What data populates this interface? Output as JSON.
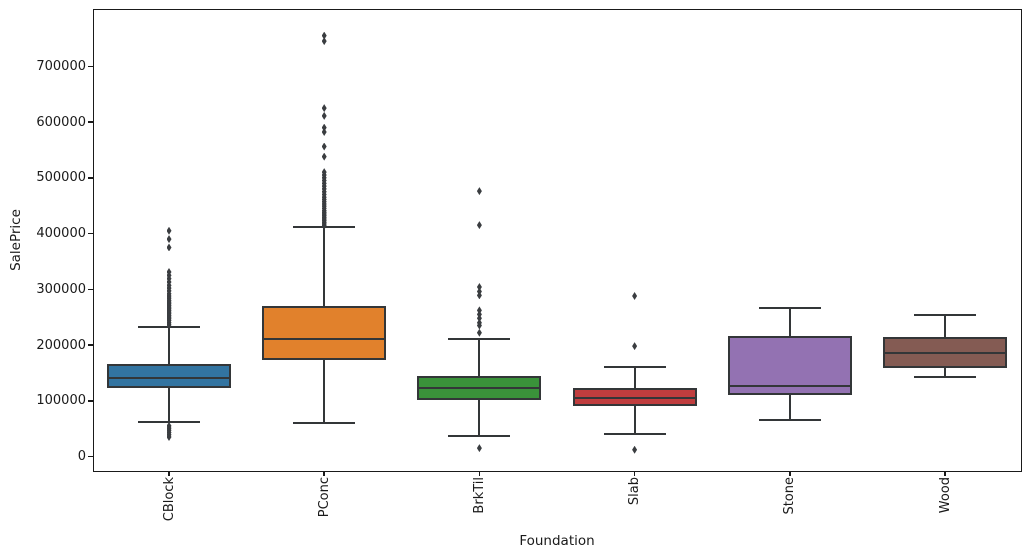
{
  "chart_data": {
    "type": "boxplot",
    "title": "",
    "xlabel": "Foundation",
    "ylabel": "SalePrice",
    "grid": false,
    "legend": false,
    "ylim": [
      -27000,
      802000
    ],
    "y_ticks": [
      0,
      100000,
      200000,
      300000,
      400000,
      500000,
      600000,
      700000
    ],
    "y_tick_labels": [
      "0",
      "100000",
      "200000",
      "300000",
      "400000",
      "500000",
      "600000",
      "700000"
    ],
    "categories": [
      "CBlock",
      "PConc",
      "BrkTil",
      "Slab",
      "Stone",
      "Wood"
    ],
    "styles": {
      "line_color": "#333638",
      "flier_color": "#3a3d40",
      "spine_color": "#1a1a1a",
      "text_color": "#1a1a1a",
      "background": "#ffffff"
    },
    "series": [
      {
        "category": "CBlock",
        "color": "#3274a1",
        "whislo": 62000,
        "q1": 123000,
        "med": 140000,
        "q3": 166000,
        "whishi": 232000,
        "fliers": [
          35000,
          39000,
          43000,
          47000,
          51000,
          55000,
          236000,
          240000,
          244000,
          247000,
          250000,
          253000,
          256000,
          259000,
          262000,
          265000,
          268000,
          271000,
          274000,
          277000,
          280000,
          284000,
          288000,
          292000,
          297000,
          302000,
          307000,
          313000,
          319000,
          325000,
          331000,
          375000,
          390000,
          405000
        ]
      },
      {
        "category": "PConc",
        "color": "#e1812c",
        "whislo": 60000,
        "q1": 173000,
        "med": 210000,
        "q3": 270000,
        "whishi": 412000,
        "fliers": [
          414000,
          417000,
          420000,
          423000,
          426000,
          429000,
          432000,
          435000,
          438000,
          441000,
          445000,
          449000,
          453000,
          457000,
          461000,
          465000,
          470000,
          475000,
          480000,
          485000,
          490000,
          495000,
          500000,
          505000,
          510000,
          538000,
          556000,
          582000,
          590000,
          611000,
          625000,
          745000,
          755000
        ]
      },
      {
        "category": "BrkTil",
        "color": "#3a923a",
        "whislo": 36000,
        "q1": 101000,
        "med": 122000,
        "q3": 145000,
        "whishi": 210000,
        "fliers": [
          15000,
          222000,
          235000,
          240000,
          248000,
          255000,
          262000,
          289000,
          296000,
          304000,
          415000,
          476000
        ]
      },
      {
        "category": "Slab",
        "color": "#c03d3e",
        "whislo": 40000,
        "q1": 90500,
        "med": 105500,
        "q3": 122000,
        "whishi": 161000,
        "fliers": [
          12000,
          198000,
          288000
        ]
      },
      {
        "category": "Stone",
        "color": "#9372b2",
        "whislo": 65000,
        "q1": 110000,
        "med": 127000,
        "q3": 216000,
        "whishi": 267000,
        "fliers": []
      },
      {
        "category": "Wood",
        "color": "#845b53",
        "whislo": 143000,
        "q1": 159000,
        "med": 186000,
        "q3": 215000,
        "whishi": 253000,
        "fliers": []
      }
    ]
  }
}
